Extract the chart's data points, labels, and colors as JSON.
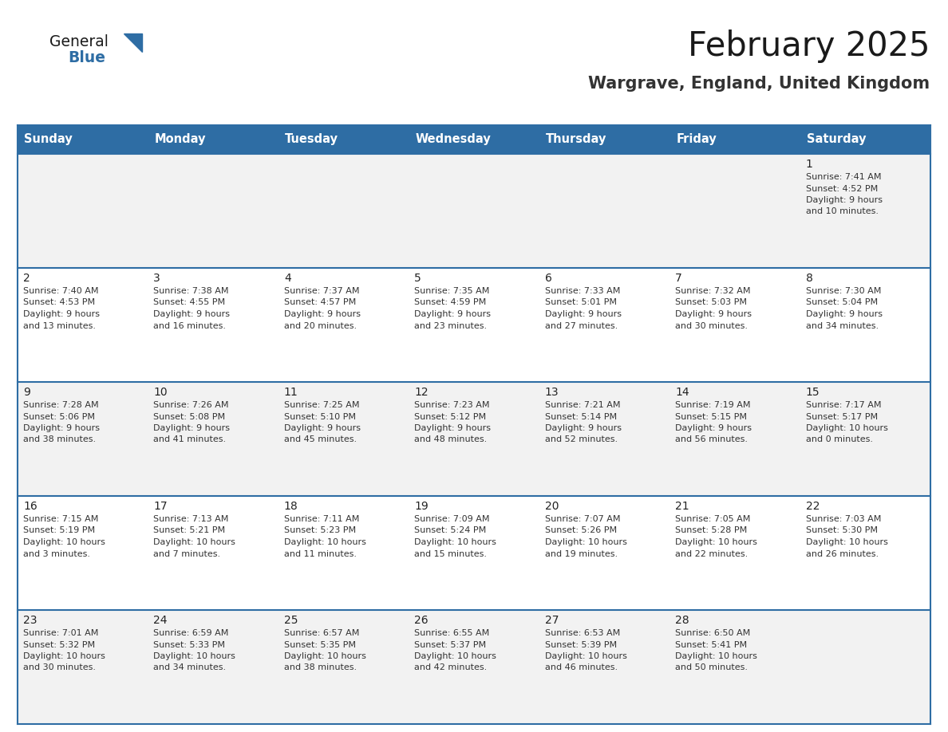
{
  "title": "February 2025",
  "subtitle": "Wargrave, England, United Kingdom",
  "header_bg": "#2E6DA4",
  "header_text_color": "#FFFFFF",
  "cell_bg_light": "#F2F2F2",
  "cell_bg_white": "#FFFFFF",
  "border_color": "#2E6DA4",
  "day_headers": [
    "Sunday",
    "Monday",
    "Tuesday",
    "Wednesday",
    "Thursday",
    "Friday",
    "Saturday"
  ],
  "days": [
    {
      "day": 1,
      "col": 6,
      "row": 0,
      "sunrise": "7:41 AM",
      "sunset": "4:52 PM",
      "daylight_h": "9 hours",
      "daylight_m": "and 10 minutes."
    },
    {
      "day": 2,
      "col": 0,
      "row": 1,
      "sunrise": "7:40 AM",
      "sunset": "4:53 PM",
      "daylight_h": "9 hours",
      "daylight_m": "and 13 minutes."
    },
    {
      "day": 3,
      "col": 1,
      "row": 1,
      "sunrise": "7:38 AM",
      "sunset": "4:55 PM",
      "daylight_h": "9 hours",
      "daylight_m": "and 16 minutes."
    },
    {
      "day": 4,
      "col": 2,
      "row": 1,
      "sunrise": "7:37 AM",
      "sunset": "4:57 PM",
      "daylight_h": "9 hours",
      "daylight_m": "and 20 minutes."
    },
    {
      "day": 5,
      "col": 3,
      "row": 1,
      "sunrise": "7:35 AM",
      "sunset": "4:59 PM",
      "daylight_h": "9 hours",
      "daylight_m": "and 23 minutes."
    },
    {
      "day": 6,
      "col": 4,
      "row": 1,
      "sunrise": "7:33 AM",
      "sunset": "5:01 PM",
      "daylight_h": "9 hours",
      "daylight_m": "and 27 minutes."
    },
    {
      "day": 7,
      "col": 5,
      "row": 1,
      "sunrise": "7:32 AM",
      "sunset": "5:03 PM",
      "daylight_h": "9 hours",
      "daylight_m": "and 30 minutes."
    },
    {
      "day": 8,
      "col": 6,
      "row": 1,
      "sunrise": "7:30 AM",
      "sunset": "5:04 PM",
      "daylight_h": "9 hours",
      "daylight_m": "and 34 minutes."
    },
    {
      "day": 9,
      "col": 0,
      "row": 2,
      "sunrise": "7:28 AM",
      "sunset": "5:06 PM",
      "daylight_h": "9 hours",
      "daylight_m": "and 38 minutes."
    },
    {
      "day": 10,
      "col": 1,
      "row": 2,
      "sunrise": "7:26 AM",
      "sunset": "5:08 PM",
      "daylight_h": "9 hours",
      "daylight_m": "and 41 minutes."
    },
    {
      "day": 11,
      "col": 2,
      "row": 2,
      "sunrise": "7:25 AM",
      "sunset": "5:10 PM",
      "daylight_h": "9 hours",
      "daylight_m": "and 45 minutes."
    },
    {
      "day": 12,
      "col": 3,
      "row": 2,
      "sunrise": "7:23 AM",
      "sunset": "5:12 PM",
      "daylight_h": "9 hours",
      "daylight_m": "and 48 minutes."
    },
    {
      "day": 13,
      "col": 4,
      "row": 2,
      "sunrise": "7:21 AM",
      "sunset": "5:14 PM",
      "daylight_h": "9 hours",
      "daylight_m": "and 52 minutes."
    },
    {
      "day": 14,
      "col": 5,
      "row": 2,
      "sunrise": "7:19 AM",
      "sunset": "5:15 PM",
      "daylight_h": "9 hours",
      "daylight_m": "and 56 minutes."
    },
    {
      "day": 15,
      "col": 6,
      "row": 2,
      "sunrise": "7:17 AM",
      "sunset": "5:17 PM",
      "daylight_h": "10 hours",
      "daylight_m": "and 0 minutes."
    },
    {
      "day": 16,
      "col": 0,
      "row": 3,
      "sunrise": "7:15 AM",
      "sunset": "5:19 PM",
      "daylight_h": "10 hours",
      "daylight_m": "and 3 minutes."
    },
    {
      "day": 17,
      "col": 1,
      "row": 3,
      "sunrise": "7:13 AM",
      "sunset": "5:21 PM",
      "daylight_h": "10 hours",
      "daylight_m": "and 7 minutes."
    },
    {
      "day": 18,
      "col": 2,
      "row": 3,
      "sunrise": "7:11 AM",
      "sunset": "5:23 PM",
      "daylight_h": "10 hours",
      "daylight_m": "and 11 minutes."
    },
    {
      "day": 19,
      "col": 3,
      "row": 3,
      "sunrise": "7:09 AM",
      "sunset": "5:24 PM",
      "daylight_h": "10 hours",
      "daylight_m": "and 15 minutes."
    },
    {
      "day": 20,
      "col": 4,
      "row": 3,
      "sunrise": "7:07 AM",
      "sunset": "5:26 PM",
      "daylight_h": "10 hours",
      "daylight_m": "and 19 minutes."
    },
    {
      "day": 21,
      "col": 5,
      "row": 3,
      "sunrise": "7:05 AM",
      "sunset": "5:28 PM",
      "daylight_h": "10 hours",
      "daylight_m": "and 22 minutes."
    },
    {
      "day": 22,
      "col": 6,
      "row": 3,
      "sunrise": "7:03 AM",
      "sunset": "5:30 PM",
      "daylight_h": "10 hours",
      "daylight_m": "and 26 minutes."
    },
    {
      "day": 23,
      "col": 0,
      "row": 4,
      "sunrise": "7:01 AM",
      "sunset": "5:32 PM",
      "daylight_h": "10 hours",
      "daylight_m": "and 30 minutes."
    },
    {
      "day": 24,
      "col": 1,
      "row": 4,
      "sunrise": "6:59 AM",
      "sunset": "5:33 PM",
      "daylight_h": "10 hours",
      "daylight_m": "and 34 minutes."
    },
    {
      "day": 25,
      "col": 2,
      "row": 4,
      "sunrise": "6:57 AM",
      "sunset": "5:35 PM",
      "daylight_h": "10 hours",
      "daylight_m": "and 38 minutes."
    },
    {
      "day": 26,
      "col": 3,
      "row": 4,
      "sunrise": "6:55 AM",
      "sunset": "5:37 PM",
      "daylight_h": "10 hours",
      "daylight_m": "and 42 minutes."
    },
    {
      "day": 27,
      "col": 4,
      "row": 4,
      "sunrise": "6:53 AM",
      "sunset": "5:39 PM",
      "daylight_h": "10 hours",
      "daylight_m": "and 46 minutes."
    },
    {
      "day": 28,
      "col": 5,
      "row": 4,
      "sunrise": "6:50 AM",
      "sunset": "5:41 PM",
      "daylight_h": "10 hours",
      "daylight_m": "and 50 minutes."
    }
  ],
  "num_rows": 5,
  "num_cols": 7,
  "logo_general_color": "#1a1a1a",
  "logo_blue_color": "#2E6DA4",
  "title_color": "#1a1a1a",
  "subtitle_color": "#333333"
}
